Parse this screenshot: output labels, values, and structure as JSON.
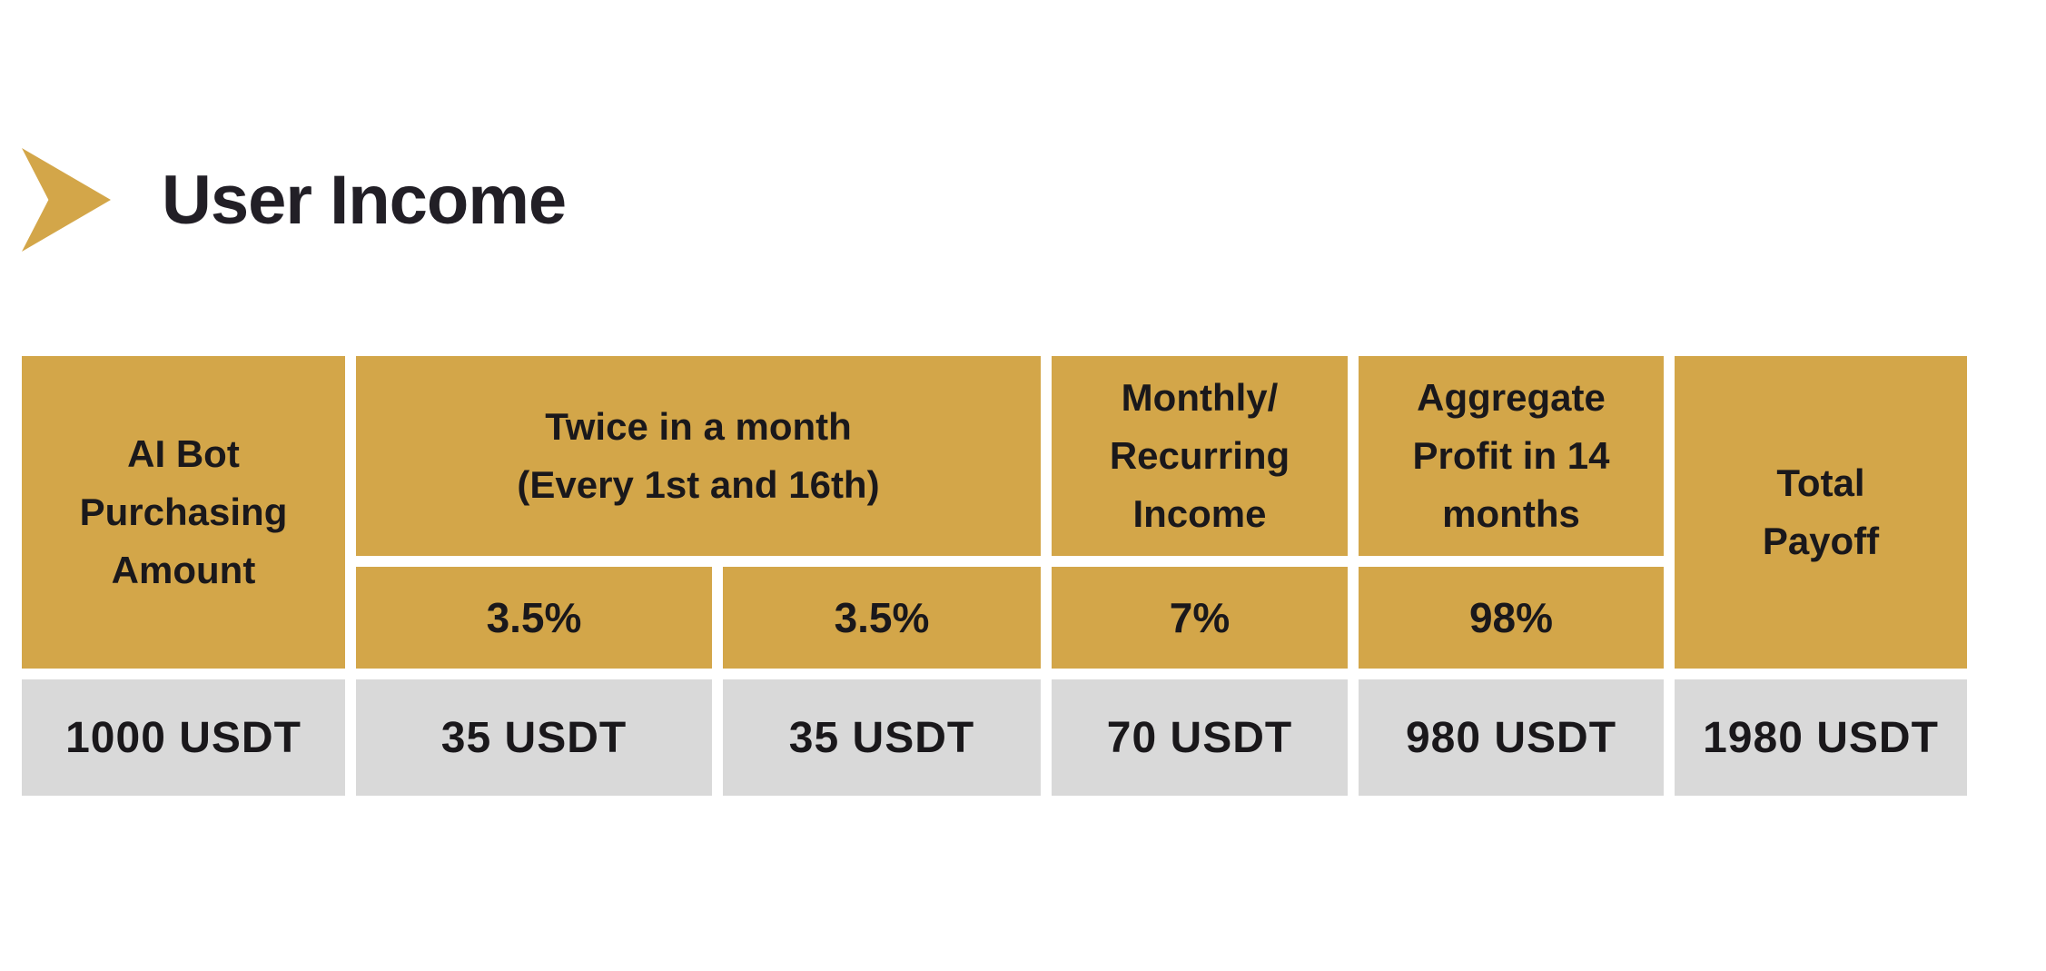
{
  "title": {
    "text": "User Income"
  },
  "icons": {
    "title_arrow": "gold-right-arrowhead"
  },
  "colors": {
    "accent_gold": "#D3A649",
    "row_gray": "#D9D9D9",
    "text_dark": "#1A181B",
    "background": "#FFFFFF"
  },
  "table": {
    "headers": {
      "purchasing": [
        "AI Bot",
        "Purchasing",
        "Amount"
      ],
      "twice": [
        "Twice in a month",
        "(Every 1st and 16th)"
      ],
      "monthly": [
        "Monthly/",
        "Recurring",
        "Income"
      ],
      "aggregate": [
        "Aggregate",
        "Profit in 14",
        "months"
      ],
      "total": [
        "Total",
        "Payoff"
      ]
    },
    "rates": [
      "3.5%",
      "3.5%",
      "7%",
      "98%"
    ],
    "values": [
      "1000 USDT",
      "35 USDT",
      "35 USDT",
      "70 USDT",
      "980 USDT",
      "1980 USDT"
    ]
  }
}
